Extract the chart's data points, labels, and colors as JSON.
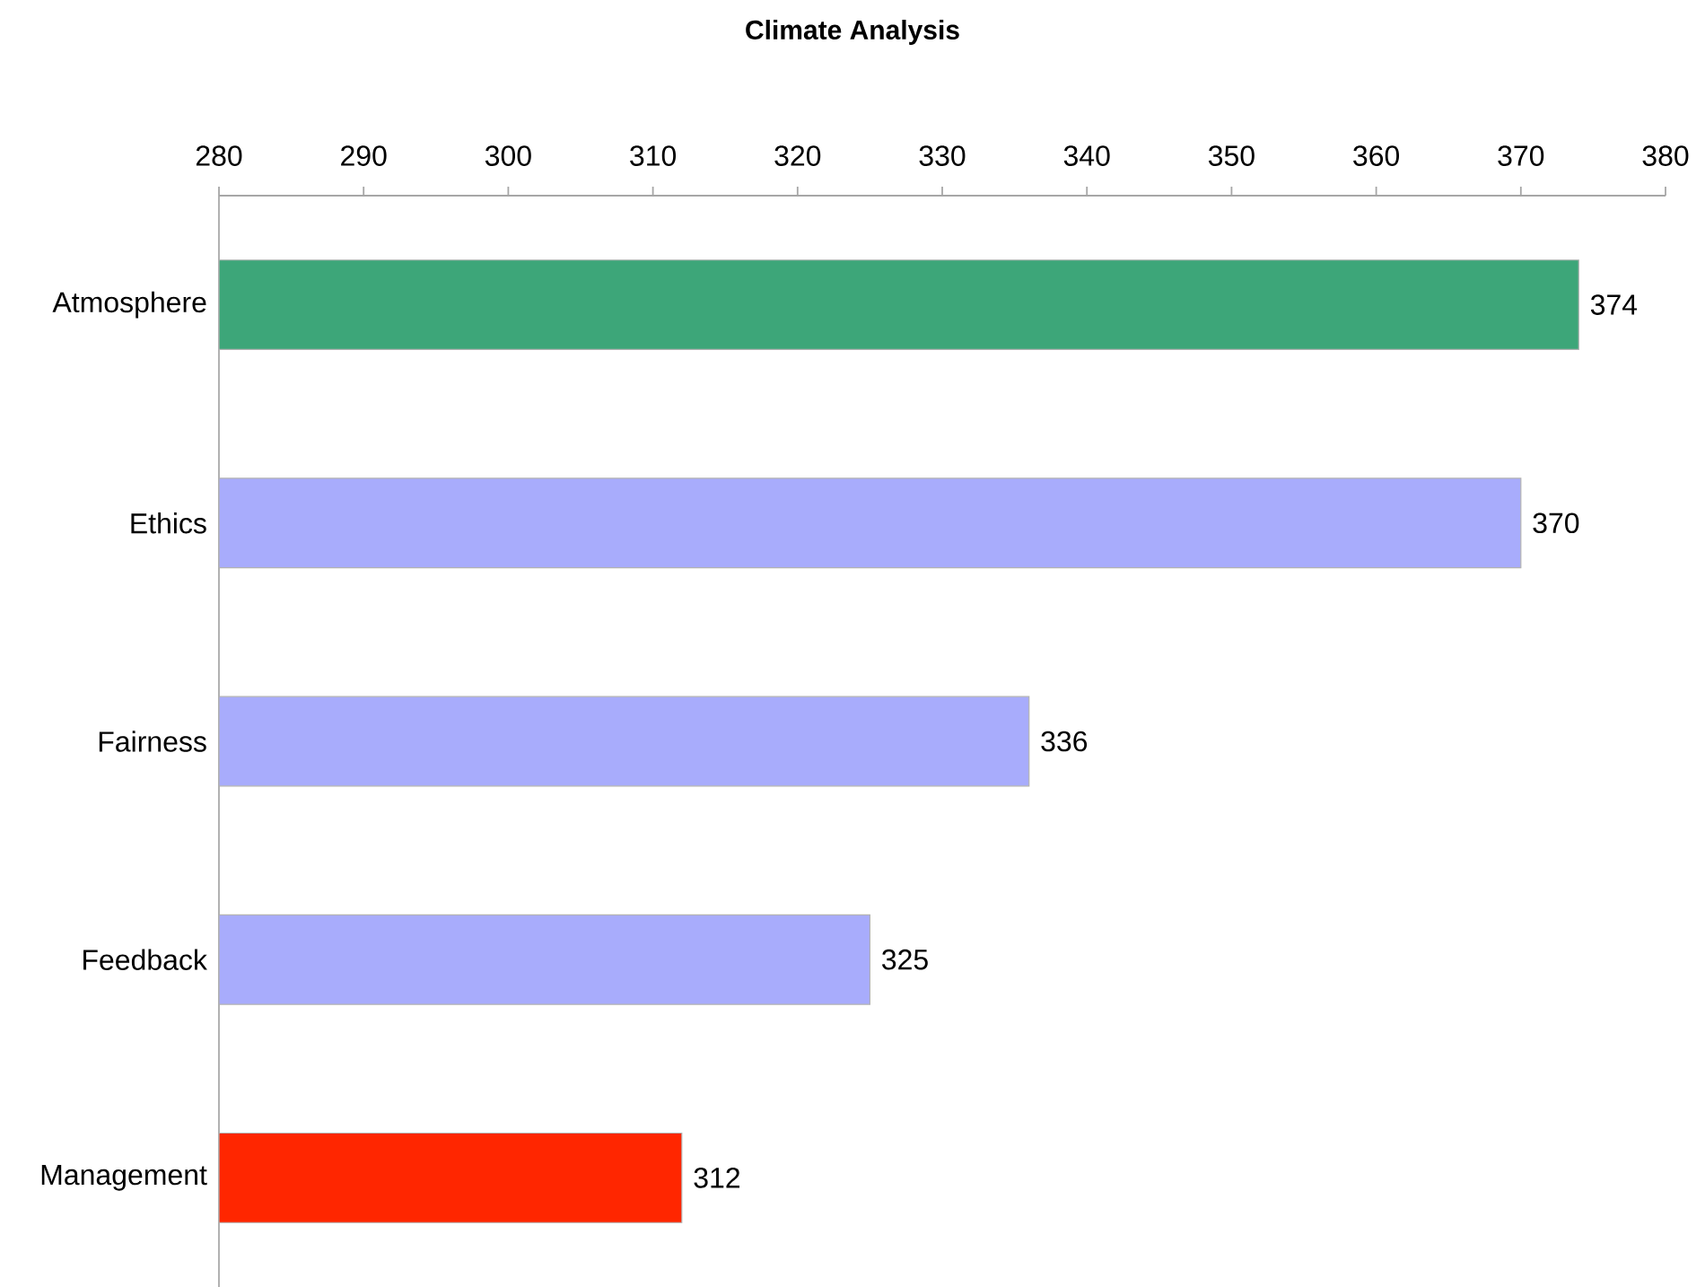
{
  "chart_data": {
    "type": "bar",
    "orientation": "horizontal",
    "title": "Climate Analysis",
    "categories": [
      "Atmosphere",
      "Ethics",
      "Fairness",
      "Feedback",
      "Management"
    ],
    "values": [
      374,
      370,
      336,
      325,
      312
    ],
    "colors": [
      "#3da679",
      "#a8acfc",
      "#a8acfc",
      "#a8acfc",
      "#ff2600"
    ],
    "xlim": [
      280,
      380
    ],
    "xticks": [
      280,
      290,
      300,
      310,
      320,
      330,
      340,
      350,
      360,
      370,
      380
    ],
    "data_labels": true
  }
}
